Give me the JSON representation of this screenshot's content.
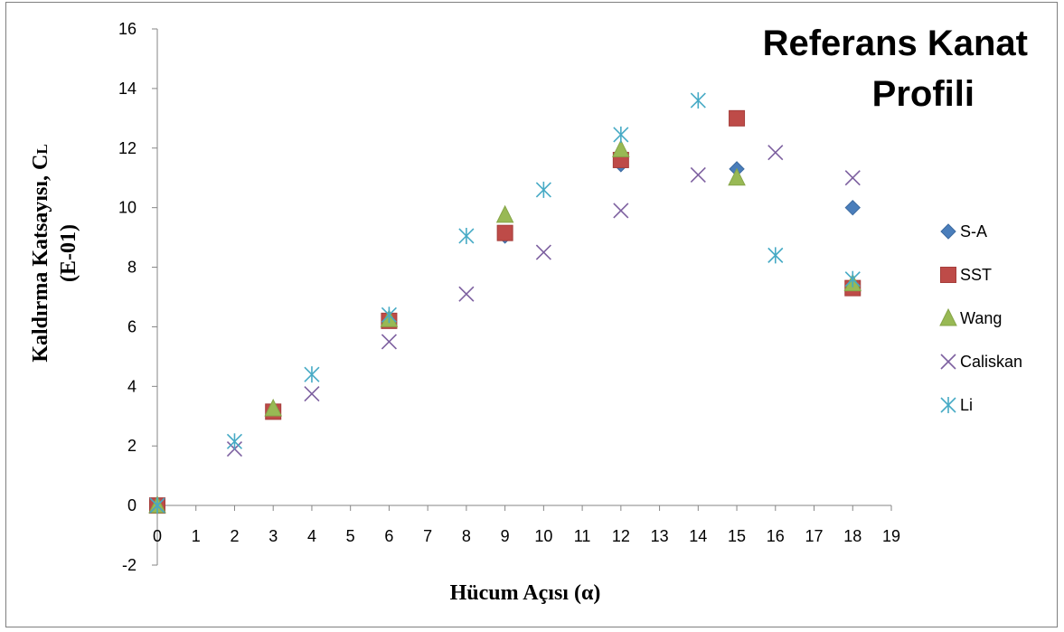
{
  "chart_data": {
    "type": "scatter",
    "title_lines": [
      "Referans Kanat",
      "Profili"
    ],
    "xlabel": "Hücum Açısı (α)",
    "ylabel_lines": [
      "Kaldırma Katsayısı, C",
      "(E-01)"
    ],
    "ylabel_subscript": "L",
    "xlim": [
      0,
      19
    ],
    "ylim": [
      -2,
      16
    ],
    "xticks": [
      0,
      1,
      2,
      3,
      4,
      5,
      6,
      7,
      8,
      9,
      10,
      11,
      12,
      13,
      14,
      15,
      16,
      17,
      18,
      19
    ],
    "yticks": [
      -2,
      0,
      2,
      4,
      6,
      8,
      10,
      12,
      14,
      16
    ],
    "grid": false,
    "legend_position": "right",
    "series": [
      {
        "name": "S-A",
        "marker": "diamond",
        "color": "#4a7ebb",
        "x": [
          0,
          3,
          6,
          9,
          12,
          15,
          18
        ],
        "y": [
          0,
          3.2,
          6.2,
          9.05,
          11.45,
          11.3,
          10
        ]
      },
      {
        "name": "SST",
        "marker": "square",
        "color": "#be4b48",
        "x": [
          0,
          3,
          6,
          9,
          12,
          15,
          18
        ],
        "y": [
          0,
          3.15,
          6.2,
          9.15,
          11.6,
          13,
          7.3
        ]
      },
      {
        "name": "Wang",
        "marker": "triangle",
        "color": "#98b954",
        "x": [
          0,
          3,
          6,
          9,
          12,
          15,
          18
        ],
        "y": [
          0,
          3.25,
          6.25,
          9.75,
          11.95,
          11,
          7.45
        ]
      },
      {
        "name": "Caliskan",
        "marker": "x",
        "color": "#7d60a0",
        "x": [
          0,
          2,
          4,
          6,
          8,
          10,
          12,
          14,
          16,
          18
        ],
        "y": [
          0,
          1.9,
          3.75,
          5.5,
          7.1,
          8.5,
          9.9,
          11.1,
          11.85,
          11
        ]
      },
      {
        "name": "Li",
        "marker": "star",
        "color": "#46aac5",
        "x": [
          0,
          2,
          4,
          6,
          8,
          10,
          12,
          14,
          16,
          18
        ],
        "y": [
          0,
          2.15,
          4.4,
          6.4,
          9.05,
          10.6,
          12.45,
          13.6,
          8.4,
          7.6
        ]
      }
    ]
  }
}
